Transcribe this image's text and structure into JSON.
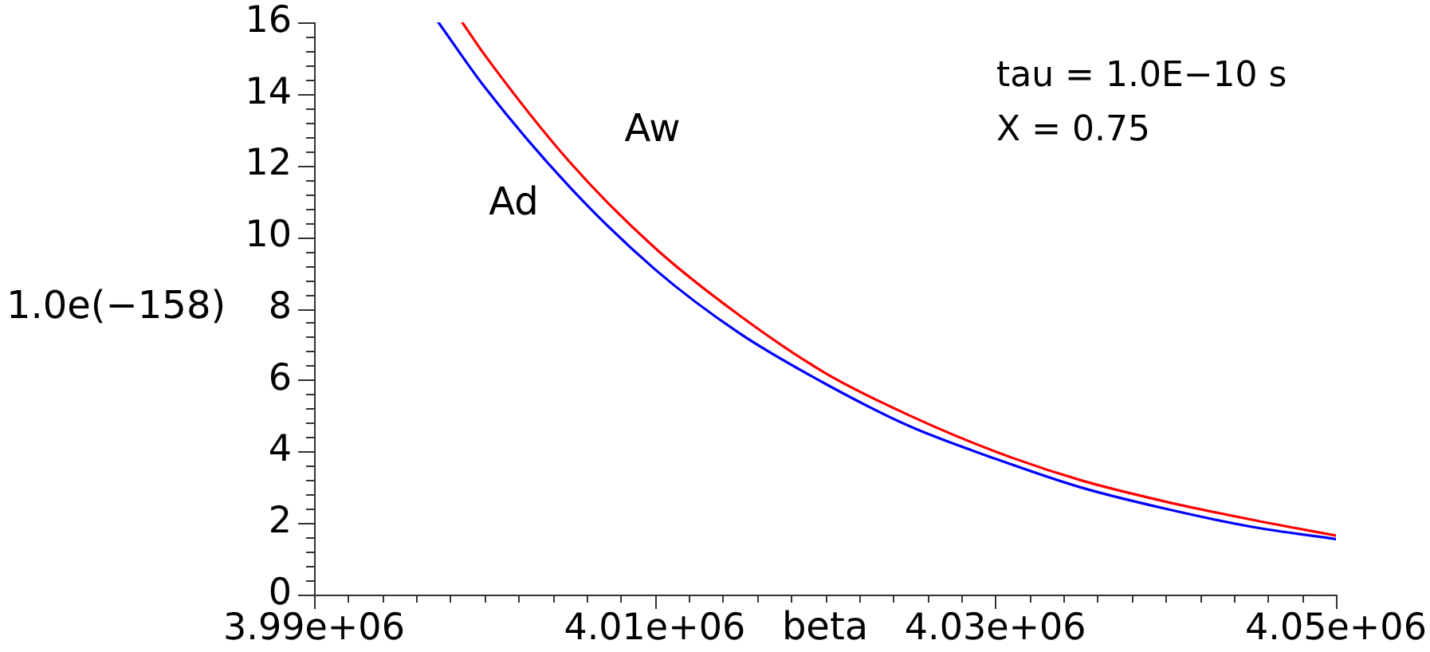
{
  "chart_data": {
    "type": "line",
    "xlabel": "beta",
    "ylabel": "1.0e(−158)",
    "annotations": [
      "tau = 1.0E−10 s",
      "X = 0.75"
    ],
    "xlim": [
      3990000,
      4050000
    ],
    "ylim": [
      0,
      16
    ],
    "xticks": [
      {
        "value": 3990000,
        "label": "3.99e+06"
      },
      {
        "value": 3992000,
        "label": null
      },
      {
        "value": 3994000,
        "label": null
      },
      {
        "value": 3996000,
        "label": null
      },
      {
        "value": 3998000,
        "label": null
      },
      {
        "value": 4000000,
        "label": null
      },
      {
        "value": 4002000,
        "label": null
      },
      {
        "value": 4004000,
        "label": null
      },
      {
        "value": 4006000,
        "label": null
      },
      {
        "value": 4008000,
        "label": null
      },
      {
        "value": 4010000,
        "label": "4.01e+06"
      },
      {
        "value": 4012000,
        "label": null
      },
      {
        "value": 4014000,
        "label": null
      },
      {
        "value": 4016000,
        "label": null
      },
      {
        "value": 4018000,
        "label": null
      },
      {
        "value": 4020000,
        "label": null
      },
      {
        "value": 4022000,
        "label": null
      },
      {
        "value": 4024000,
        "label": null
      },
      {
        "value": 4026000,
        "label": null
      },
      {
        "value": 4028000,
        "label": null
      },
      {
        "value": 4030000,
        "label": "4.03e+06"
      },
      {
        "value": 4032000,
        "label": null
      },
      {
        "value": 4034000,
        "label": null
      },
      {
        "value": 4036000,
        "label": null
      },
      {
        "value": 4038000,
        "label": null
      },
      {
        "value": 4040000,
        "label": null
      },
      {
        "value": 4042000,
        "label": null
      },
      {
        "value": 4044000,
        "label": null
      },
      {
        "value": 4046000,
        "label": null
      },
      {
        "value": 4048000,
        "label": null
      },
      {
        "value": 4050000,
        "label": "4.05e+06"
      }
    ],
    "yticks": [
      0,
      {
        "value": 0.4,
        "label": null
      },
      {
        "value": 0.8,
        "label": null
      },
      {
        "value": 1.2,
        "label": null
      },
      {
        "value": 1.6,
        "label": null
      },
      2,
      {
        "value": 2.4,
        "label": null
      },
      {
        "value": 2.8,
        "label": null
      },
      {
        "value": 3.2,
        "label": null
      },
      {
        "value": 3.6,
        "label": null
      },
      4,
      {
        "value": 4.4,
        "label": null
      },
      {
        "value": 4.8,
        "label": null
      },
      {
        "value": 5.2,
        "label": null
      },
      {
        "value": 5.6,
        "label": null
      },
      6,
      {
        "value": 6.4,
        "label": null
      },
      {
        "value": 6.8,
        "label": null
      },
      {
        "value": 7.2,
        "label": null
      },
      {
        "value": 7.6,
        "label": null
      },
      8,
      {
        "value": 8.4,
        "label": null
      },
      {
        "value": 8.8,
        "label": null
      },
      {
        "value": 9.2,
        "label": null
      },
      {
        "value": 9.6,
        "label": null
      },
      10,
      {
        "value": 10.4,
        "label": null
      },
      {
        "value": 10.8,
        "label": null
      },
      {
        "value": 11.2,
        "label": null
      },
      {
        "value": 11.6,
        "label": null
      },
      12,
      {
        "value": 12.4,
        "label": null
      },
      {
        "value": 12.8,
        "label": null
      },
      {
        "value": 13.2,
        "label": null
      },
      {
        "value": 13.6,
        "label": null
      },
      14,
      {
        "value": 14.4,
        "label": null
      },
      {
        "value": 14.8,
        "label": null
      },
      {
        "value": 15.2,
        "label": null
      },
      {
        "value": 15.6,
        "label": null
      },
      16
    ],
    "series": [
      {
        "name": "Aw",
        "color": "#ff0000",
        "x": [
          3998700,
          4000000,
          4005000,
          4010000,
          4015000,
          4020000,
          4025000,
          4030000,
          4035000,
          4040000,
          4045000,
          4050000
        ],
        "values": [
          16,
          15.1,
          12.1,
          9.7,
          7.8,
          6.2,
          5.0,
          4.0,
          3.2,
          2.6,
          2.1,
          1.65
        ]
      },
      {
        "name": "Ad",
        "color": "#0000ff",
        "x": [
          3997300,
          4000000,
          4005000,
          4010000,
          4015000,
          4020000,
          4025000,
          4030000,
          4035000,
          4040000,
          4045000,
          4050000
        ],
        "values": [
          16,
          14.2,
          11.4,
          9.1,
          7.3,
          5.9,
          4.7,
          3.8,
          3.0,
          2.4,
          1.9,
          1.55
        ]
      }
    ]
  }
}
